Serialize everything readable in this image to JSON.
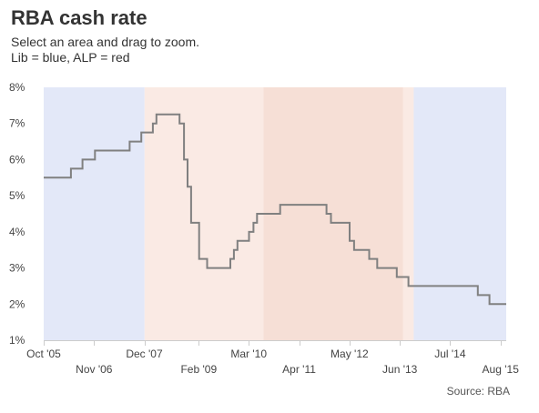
{
  "chart_data": {
    "type": "line",
    "title": "RBA cash rate",
    "subtitle_lines": [
      "Select an area and drag to zoom.",
      "Lib = blue, ALP = red"
    ],
    "source": "Source: RBA",
    "xlabel": "",
    "ylabel": "",
    "y_ticks": [
      "1%",
      "2%",
      "3%",
      "4%",
      "5%",
      "6%",
      "7%",
      "8%"
    ],
    "ylim": [
      1,
      8
    ],
    "x_range": [
      "2005-10-01",
      "2015-09-15"
    ],
    "x_ticks_upper": [
      {
        "label": "Oct '05",
        "date": "2005-10-01"
      },
      {
        "label": "Dec '07",
        "date": "2007-12-01"
      },
      {
        "label": "Mar '10",
        "date": "2010-03-01"
      },
      {
        "label": "May '12",
        "date": "2012-05-01"
      },
      {
        "label": "Jul '14",
        "date": "2014-07-01"
      }
    ],
    "x_ticks_lower": [
      {
        "label": "Nov '06",
        "date": "2006-11-01"
      },
      {
        "label": "Feb '09",
        "date": "2009-02-01"
      },
      {
        "label": "Apr '11",
        "date": "2011-04-01"
      },
      {
        "label": "Jun '13",
        "date": "2013-06-01"
      },
      {
        "label": "Aug '15",
        "date": "2015-08-01"
      }
    ],
    "bands": [
      {
        "start": "2005-10-01",
        "end": "2007-12-03",
        "party": "Lib",
        "color": "#e3e8f8"
      },
      {
        "start": "2007-12-03",
        "end": "2010-06-24",
        "party": "ALP",
        "color": "#faeae4"
      },
      {
        "start": "2010-06-24",
        "end": "2013-06-27",
        "party": "ALP",
        "color": "#f6dfd6"
      },
      {
        "start": "2013-06-27",
        "end": "2013-09-18",
        "party": "ALP",
        "color": "#faeae4"
      },
      {
        "start": "2013-09-18",
        "end": "2015-09-15",
        "party": "Lib",
        "color": "#e3e8f8"
      }
    ],
    "line_color": "#808080",
    "series": [
      {
        "step": true,
        "x": [
          "2005-10-01",
          "2006-05-03",
          "2006-08-02",
          "2006-11-08",
          "2007-08-08",
          "2007-11-07",
          "2008-02-06",
          "2008-03-05",
          "2008-09-03",
          "2008-10-08",
          "2008-11-05",
          "2008-12-03",
          "2009-02-04",
          "2009-04-08",
          "2009-10-07",
          "2009-11-04",
          "2009-12-02",
          "2010-03-03",
          "2010-04-07",
          "2010-05-05",
          "2010-11-03",
          "2011-11-02",
          "2011-12-07",
          "2012-05-02",
          "2012-06-06",
          "2012-10-03",
          "2012-12-05",
          "2013-05-08",
          "2013-08-07",
          "2015-02-04",
          "2015-05-06",
          "2015-09-15"
        ],
        "y": [
          5.5,
          5.75,
          6.0,
          6.25,
          6.5,
          6.75,
          7.0,
          7.25,
          7.0,
          6.0,
          5.25,
          4.25,
          3.25,
          3.0,
          3.25,
          3.5,
          3.75,
          4.0,
          4.25,
          4.5,
          4.75,
          4.5,
          4.25,
          3.75,
          3.5,
          3.25,
          3.0,
          2.75,
          2.5,
          2.25,
          2.0,
          2.0
        ]
      }
    ],
    "grid": false,
    "legend": "none"
  }
}
